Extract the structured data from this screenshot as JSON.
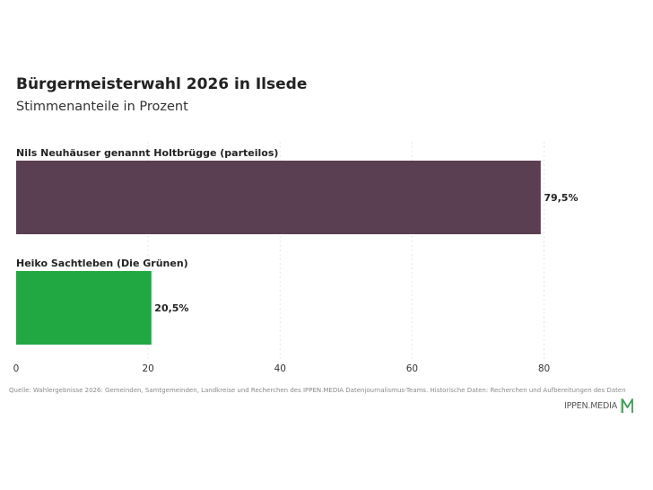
{
  "header": {
    "title": "Bürgermeisterwahl 2026 in Ilsede",
    "subtitle": "Stimmenanteile in Prozent"
  },
  "footer": {
    "source": "Quelle: Wahlergebnisse 2026: Gemeinden, Samtgemeinden, Landkreise und Recherchen des IPPEN.MEDIA Datenjournalismus-Teams. Historische Daten: Recherchen und Aufbereitungen des Daten",
    "brand": "IPPEN.MEDIA"
  },
  "chart_data": {
    "type": "bar",
    "orientation": "horizontal",
    "title": "Bürgermeisterwahl 2026 in Ilsede",
    "subtitle": "Stimmenanteile in Prozent",
    "categories": [
      "Nils Neuhäuser genannt Holtbrügge (parteilos)",
      "Heiko Sachtleben (Die Grünen)"
    ],
    "values": [
      79.5,
      20.5
    ],
    "value_labels": [
      "79,5%",
      "20,5%"
    ],
    "colors": [
      "#5a3e52",
      "#22a843"
    ],
    "xlim": [
      0,
      80
    ],
    "x_ticks": [
      0,
      20,
      40,
      60,
      80
    ],
    "x_tick_labels": [
      "0",
      "20",
      "40",
      "60",
      "80"
    ],
    "grid": "vertical-dotted"
  }
}
